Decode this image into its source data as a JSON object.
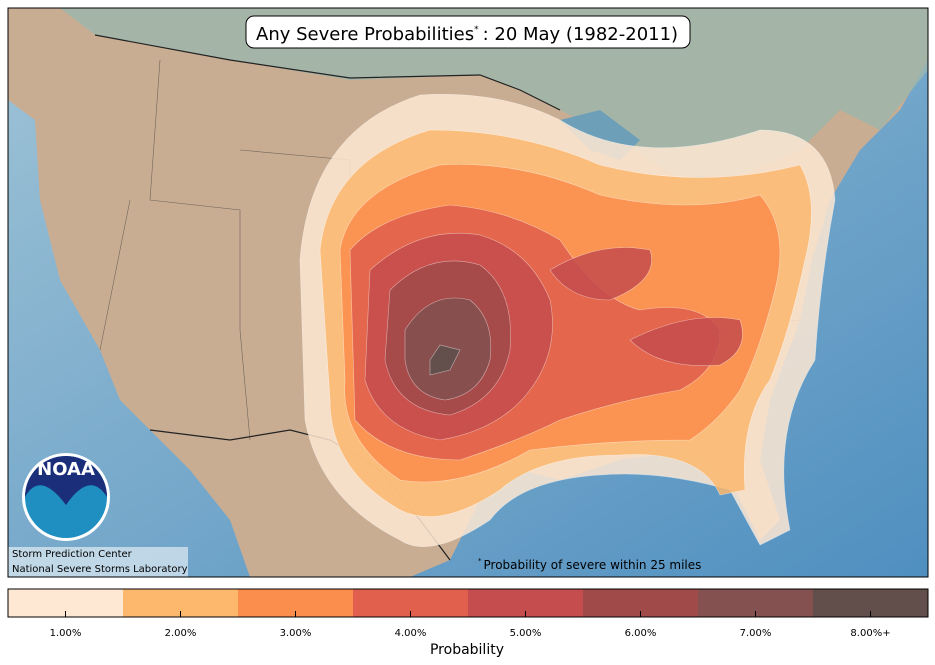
{
  "header": {
    "title": "Any Severe Probabilities",
    "title_mark": "*",
    "title_rest": ": 20 May (1982-2011)"
  },
  "logo": {
    "text": "NOAA"
  },
  "credits": [
    "Storm Prediction Center",
    "National Severe Storms Laboratory"
  ],
  "footnote": {
    "mark": "*",
    "text": "Probability of severe within 25 miles"
  },
  "colorbar": {
    "label": "Probability",
    "items": [
      {
        "label": "1.00%",
        "color": "#fee8d3"
      },
      {
        "label": "2.00%",
        "color": "#fdb86e"
      },
      {
        "label": "3.00%",
        "color": "#fb8d4d"
      },
      {
        "label": "4.00%",
        "color": "#e0604d"
      },
      {
        "label": "5.00%",
        "color": "#c64d4d"
      },
      {
        "label": "6.00%",
        "color": "#a14a4a"
      },
      {
        "label": "7.00%",
        "color": "#855050"
      },
      {
        "label": "8.00%+",
        "color": "#624f4c"
      }
    ]
  }
}
